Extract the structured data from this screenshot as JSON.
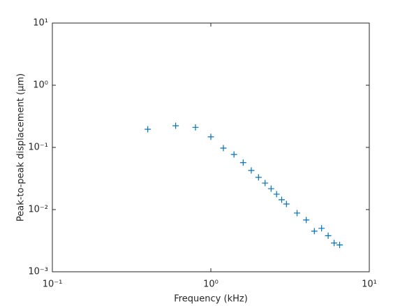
{
  "chart_data": {
    "type": "scatter",
    "xlabel": "Frequency (kHz)",
    "ylabel": "Peak-to-peak displacement (μm)",
    "xlog": true,
    "ylog": true,
    "xlim": [
      0.1,
      10
    ],
    "ylim": [
      0.001,
      10
    ],
    "xticks": [
      {
        "value": 0.1,
        "label": "10⁻¹"
      },
      {
        "value": 1,
        "label": "10⁰"
      },
      {
        "value": 10,
        "label": "10¹"
      }
    ],
    "yticks": [
      {
        "value": 0.001,
        "label": "10⁻³"
      },
      {
        "value": 0.01,
        "label": "10⁻²"
      },
      {
        "value": 0.1,
        "label": "10⁻¹"
      },
      {
        "value": 1,
        "label": "10⁰"
      },
      {
        "value": 10,
        "label": "10¹"
      }
    ],
    "series": [
      {
        "color": "#0072bd",
        "x": [
          0.4,
          0.6,
          0.8,
          1.0,
          1.2,
          1.4,
          1.6,
          1.8,
          2.0,
          2.2,
          2.4,
          2.6,
          2.8,
          3.0,
          3.5,
          4.0,
          4.5,
          5.0,
          5.5,
          6.0,
          6.5
        ],
        "values": [
          0.196,
          0.223,
          0.21,
          0.148,
          0.0975,
          0.077,
          0.057,
          0.0426,
          0.033,
          0.0267,
          0.0217,
          0.0177,
          0.0144,
          0.0123,
          0.0088,
          0.0068,
          0.0045,
          0.005,
          0.0038,
          0.0029,
          0.0027
        ]
      }
    ]
  }
}
